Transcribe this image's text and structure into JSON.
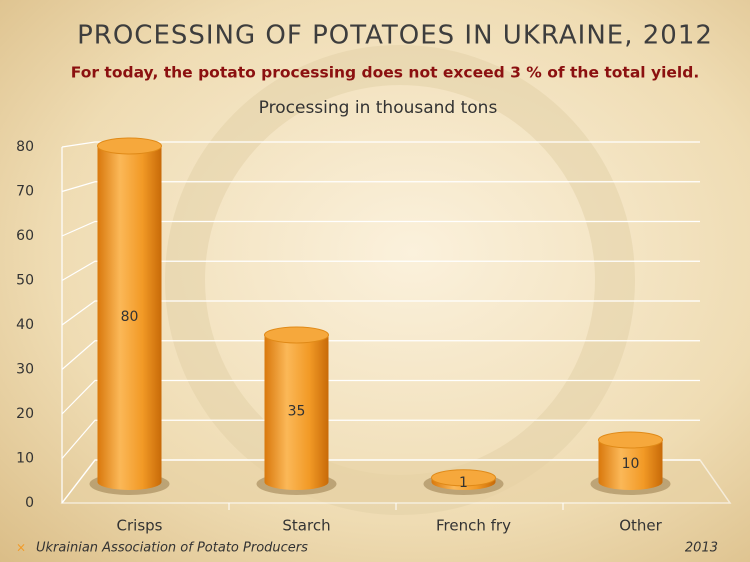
{
  "chart_data": {
    "type": "bar",
    "title": "PROCESSING OF POTATOES IN UKRAINE, 2012",
    "subtitle": "For today, the potato processing does not exceed 3 % of the total yield.",
    "chart_title": "Processing in thousand tons",
    "categories": [
      "Crisps",
      "Starch",
      "French fry",
      "Other"
    ],
    "values": [
      80,
      35,
      1,
      10
    ],
    "color": "#f29a26",
    "ylim": [
      0,
      80
    ],
    "yticks": [
      0,
      10,
      20,
      30,
      40,
      50,
      60,
      70,
      80
    ],
    "grid": true,
    "footer": "Ukrainian Association of Potato Producers",
    "year": "2013"
  }
}
